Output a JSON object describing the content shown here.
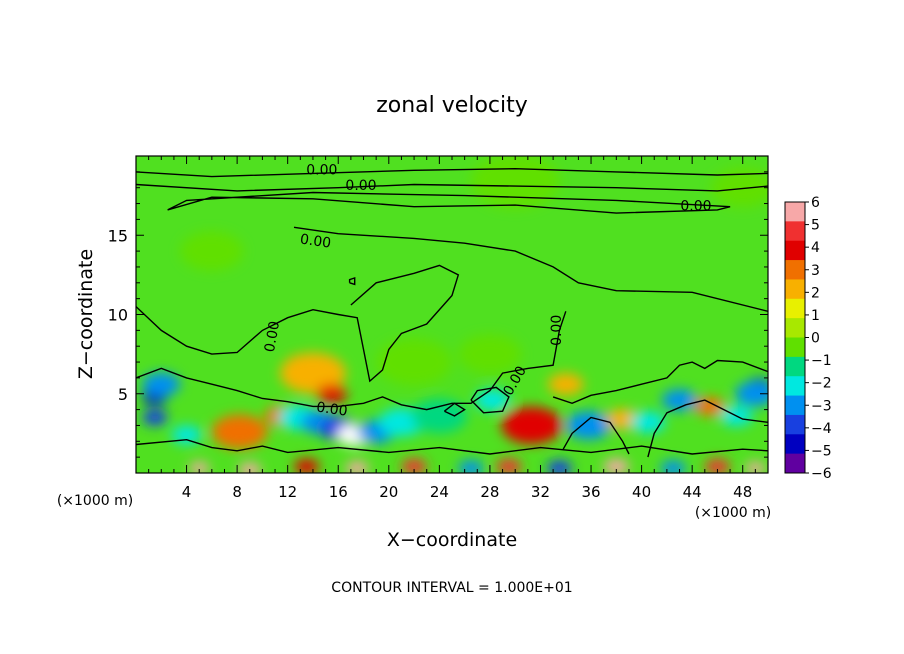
{
  "chart_data": {
    "type": "heatmap",
    "title": "zonal velocity",
    "xlabel": "X−coordinate",
    "ylabel": "Z−coordinate",
    "x_unit_left": "(×1000 m)",
    "x_unit_right": "(×1000 m)",
    "xlim": [
      0,
      50
    ],
    "ylim": [
      0,
      20
    ],
    "xticks": [
      4,
      8,
      12,
      16,
      20,
      24,
      28,
      32,
      36,
      40,
      44,
      48
    ],
    "yticks": [
      5,
      10,
      15
    ],
    "contour_label": "0.00",
    "footer": "CONTOUR INTERVAL = 1.000E+01",
    "colorbar": {
      "ticks": [
        6,
        5,
        4,
        3,
        2,
        1,
        0,
        -1,
        -2,
        -3,
        -4,
        -5,
        -6
      ],
      "colors": [
        "#f7a8a8",
        "#f03030",
        "#e00000",
        "#f07000",
        "#f8b000",
        "#e8f000",
        "#a8e800",
        "#60e000",
        "#00d880",
        "#00e8e0",
        "#0090f0",
        "#1840e0",
        "#0000c0",
        "#6000a0"
      ]
    },
    "anomalies": [
      {
        "x": 1.5,
        "z": 4.8,
        "v": -6,
        "r": 1.0
      },
      {
        "x": 2.0,
        "z": 5.6,
        "v": -4,
        "r": 1.5
      },
      {
        "x": 1.5,
        "z": 3.5,
        "v": -5,
        "r": 1.0
      },
      {
        "x": 4.0,
        "z": 2.4,
        "v": -3,
        "r": 1.2
      },
      {
        "x": 8.2,
        "z": 2.6,
        "v": 6,
        "r": 1.0
      },
      {
        "x": 8.2,
        "z": 2.6,
        "v": 3,
        "r": 2.2
      },
      {
        "x": 11.5,
        "z": 3.6,
        "v": 3,
        "r": 1.3
      },
      {
        "x": 13.2,
        "z": 6.8,
        "v": 3,
        "r": 1.4
      },
      {
        "x": 14.0,
        "z": 6.3,
        "v": 2,
        "r": 2.6
      },
      {
        "x": 15.5,
        "z": 5.0,
        "v": 4,
        "r": 1.2
      },
      {
        "x": 12.8,
        "z": 3.5,
        "v": -3,
        "r": 1.6
      },
      {
        "x": 14.5,
        "z": 3.2,
        "v": -4,
        "r": 1.5
      },
      {
        "x": 16.0,
        "z": 2.8,
        "v": -5,
        "r": 1.5
      },
      {
        "x": 17.3,
        "z": 2.4,
        "v": -7,
        "r": 1.4
      },
      {
        "x": 19.0,
        "z": 2.6,
        "v": -4,
        "r": 1.5
      },
      {
        "x": 21.0,
        "z": 3.2,
        "v": -3,
        "r": 1.8
      },
      {
        "x": 24.0,
        "z": 3.6,
        "v": -2.5,
        "r": 2.2
      },
      {
        "x": 22.0,
        "z": 7.0,
        "v": -1.5,
        "r": 3.0
      },
      {
        "x": 28.0,
        "z": 7.5,
        "v": -1.5,
        "r": 2.5
      },
      {
        "x": 28.2,
        "z": 4.6,
        "v": -3,
        "r": 1.4
      },
      {
        "x": 31.3,
        "z": 3.0,
        "v": 6,
        "r": 1.3
      },
      {
        "x": 31.3,
        "z": 3.0,
        "v": 3.5,
        "r": 2.4
      },
      {
        "x": 35.8,
        "z": 3.0,
        "v": -6,
        "r": 1.0
      },
      {
        "x": 35.8,
        "z": 3.0,
        "v": -4,
        "r": 1.8
      },
      {
        "x": 34.0,
        "z": 5.6,
        "v": 1.5,
        "r": 1.4
      },
      {
        "x": 38.5,
        "z": 3.4,
        "v": 1.5,
        "r": 1.3
      },
      {
        "x": 40.5,
        "z": 3.2,
        "v": -3,
        "r": 1.4
      },
      {
        "x": 43.0,
        "z": 4.6,
        "v": -4,
        "r": 1.4
      },
      {
        "x": 45.4,
        "z": 4.2,
        "v": 3,
        "r": 1.2
      },
      {
        "x": 47.5,
        "z": 3.6,
        "v": -3,
        "r": 1.3
      },
      {
        "x": 49.3,
        "z": 5.5,
        "v": -6,
        "r": 1.0
      },
      {
        "x": 49.0,
        "z": 5.0,
        "v": -4,
        "r": 1.6
      },
      {
        "x": 5.0,
        "z": 0.3,
        "v": 6,
        "r": 0.8
      },
      {
        "x": 9.0,
        "z": 0.2,
        "v": 6,
        "r": 0.9
      },
      {
        "x": 13.5,
        "z": 0.4,
        "v": 4,
        "r": 1.0
      },
      {
        "x": 17.5,
        "z": 0.3,
        "v": 6,
        "r": 0.9
      },
      {
        "x": 22.0,
        "z": 0.4,
        "v": 5,
        "r": 1.0
      },
      {
        "x": 26.5,
        "z": 0.3,
        "v": -4,
        "r": 1.0
      },
      {
        "x": 29.5,
        "z": 0.4,
        "v": 5,
        "r": 1.0
      },
      {
        "x": 33.5,
        "z": 0.3,
        "v": -5,
        "r": 1.0
      },
      {
        "x": 38.0,
        "z": 0.4,
        "v": 6,
        "r": 1.0
      },
      {
        "x": 42.5,
        "z": 0.3,
        "v": -4,
        "r": 1.0
      },
      {
        "x": 46.0,
        "z": 0.4,
        "v": 5,
        "r": 1.0
      },
      {
        "x": 49.0,
        "z": 0.3,
        "v": 6,
        "r": 0.8
      },
      {
        "x": 30.0,
        "z": 18.4,
        "v": -1.3,
        "r": 3.5
      },
      {
        "x": 48.0,
        "z": 18.0,
        "v": -1.5,
        "r": 2.5
      },
      {
        "x": 6.0,
        "z": 14.0,
        "v": -1.0,
        "r": 2.5
      }
    ],
    "contours": [
      [
        [
          0,
          19.0
        ],
        [
          6,
          18.7
        ],
        [
          14,
          18.9
        ],
        [
          22,
          19.1
        ],
        [
          30,
          19.2
        ],
        [
          38,
          19.0
        ],
        [
          46,
          18.8
        ],
        [
          50,
          18.9
        ]
      ],
      [
        [
          0,
          18.2
        ],
        [
          8,
          17.8
        ],
        [
          16,
          18.0
        ],
        [
          22,
          18.2
        ],
        [
          30,
          18.1
        ],
        [
          38,
          18.0
        ],
        [
          46,
          17.8
        ],
        [
          50,
          18.1
        ]
      ],
      [
        [
          2.5,
          16.6
        ],
        [
          6,
          17.4
        ],
        [
          14,
          17.3
        ],
        [
          22,
          16.8
        ],
        [
          30,
          16.9
        ],
        [
          38,
          16.4
        ],
        [
          46,
          16.6
        ],
        [
          47.0,
          16.8
        ],
        [
          38,
          17.2
        ],
        [
          26,
          17.5
        ],
        [
          14,
          17.7
        ],
        [
          4,
          17.2
        ],
        [
          2.5,
          16.6
        ]
      ],
      [
        [
          12.5,
          15.5
        ],
        [
          16,
          15.1
        ],
        [
          22,
          14.8
        ],
        [
          26,
          14.5
        ],
        [
          30,
          14.0
        ],
        [
          33,
          13.0
        ],
        [
          35,
          12.0
        ],
        [
          38,
          11.5
        ],
        [
          44,
          11.4
        ],
        [
          50,
          10.2
        ]
      ],
      [
        [
          0,
          10.5
        ],
        [
          2,
          9.0
        ],
        [
          4,
          8.0
        ],
        [
          6,
          7.5
        ],
        [
          8,
          7.6
        ],
        [
          10,
          9.0
        ],
        [
          12,
          9.8
        ],
        [
          14,
          10.3
        ],
        [
          16,
          10.0
        ],
        [
          17.5,
          9.8
        ],
        [
          18.0,
          7.8
        ],
        [
          18.5,
          5.8
        ],
        [
          19.5,
          6.5
        ],
        [
          20,
          7.8
        ],
        [
          21,
          8.8
        ],
        [
          23,
          9.4
        ],
        [
          25,
          11.2
        ],
        [
          25.5,
          12.5
        ],
        [
          24.0,
          13.1
        ],
        [
          22,
          12.6
        ],
        [
          19,
          12.0
        ],
        [
          17,
          10.6
        ]
      ],
      [
        [
          0,
          6.0
        ],
        [
          2,
          6.6
        ],
        [
          4,
          6.0
        ],
        [
          6,
          5.6
        ],
        [
          8,
          5.2
        ],
        [
          10,
          4.7
        ],
        [
          12,
          4.5
        ],
        [
          14,
          4.2
        ],
        [
          16,
          4.2
        ],
        [
          18,
          4.4
        ],
        [
          19.5,
          4.8
        ],
        [
          21,
          4.3
        ],
        [
          23,
          4.0
        ],
        [
          25,
          4.4
        ],
        [
          26.5,
          4.4
        ],
        [
          28,
          5.2
        ],
        [
          29,
          6.3
        ],
        [
          31,
          6.6
        ],
        [
          33,
          6.8
        ],
        [
          33.5,
          9.0
        ],
        [
          34,
          10.2
        ]
      ],
      [
        [
          26.5,
          4.6
        ],
        [
          27.5,
          3.8
        ],
        [
          29,
          3.9
        ],
        [
          29.5,
          4.8
        ],
        [
          28.5,
          5.4
        ],
        [
          27,
          5.2
        ],
        [
          26.5,
          4.6
        ]
      ],
      [
        [
          24.4,
          3.9
        ],
        [
          25.2,
          3.6
        ],
        [
          26.0,
          4.0
        ],
        [
          25.2,
          4.4
        ],
        [
          24.4,
          3.9
        ]
      ],
      [
        [
          33,
          4.8
        ],
        [
          34.5,
          4.4
        ],
        [
          36,
          4.9
        ],
        [
          38,
          5.2
        ],
        [
          40,
          5.6
        ],
        [
          42,
          6.0
        ],
        [
          43,
          6.8
        ],
        [
          44,
          7.0
        ],
        [
          45,
          6.6
        ],
        [
          46,
          7.1
        ],
        [
          48,
          7.0
        ],
        [
          50,
          6.4
        ]
      ],
      [
        [
          0,
          1.8
        ],
        [
          4,
          2.1
        ],
        [
          6,
          1.6
        ],
        [
          8,
          1.4
        ],
        [
          10,
          1.7
        ],
        [
          12,
          1.3
        ],
        [
          16,
          1.6
        ],
        [
          20,
          1.3
        ],
        [
          24,
          1.6
        ],
        [
          28,
          1.2
        ],
        [
          32,
          1.6
        ],
        [
          36,
          1.3
        ],
        [
          40,
          1.7
        ],
        [
          44,
          1.2
        ],
        [
          48,
          1.5
        ],
        [
          50,
          1.4
        ]
      ],
      [
        [
          33.8,
          1.5
        ],
        [
          34.5,
          2.5
        ],
        [
          36,
          3.5
        ],
        [
          37.5,
          3.2
        ],
        [
          38.5,
          2.0
        ],
        [
          39,
          1.2
        ]
      ],
      [
        [
          40.5,
          1.0
        ],
        [
          41,
          2.5
        ],
        [
          42,
          3.8
        ],
        [
          43.5,
          4.3
        ],
        [
          45,
          4.6
        ],
        [
          46.5,
          4.0
        ],
        [
          48,
          3.4
        ],
        [
          50,
          3.2
        ]
      ],
      [
        [
          16.9,
          12.0
        ],
        [
          17.3,
          11.9
        ],
        [
          17.3,
          12.3
        ],
        [
          16.9,
          12.2
        ],
        [
          16.9,
          12.0
        ]
      ]
    ],
    "contour_labels": [
      {
        "x": 14.7,
        "z": 19.1,
        "angle": 0
      },
      {
        "x": 17.8,
        "z": 18.1,
        "angle": 0
      },
      {
        "x": 44.3,
        "z": 16.8,
        "angle": 0
      },
      {
        "x": 14.2,
        "z": 14.6,
        "angle": 8
      },
      {
        "x": 10.8,
        "z": 8.6,
        "angle": -80
      },
      {
        "x": 33.3,
        "z": 9.0,
        "angle": -90
      },
      {
        "x": 30.0,
        "z": 5.8,
        "angle": -60
      },
      {
        "x": 15.5,
        "z": 4.0,
        "angle": 8
      }
    ]
  }
}
